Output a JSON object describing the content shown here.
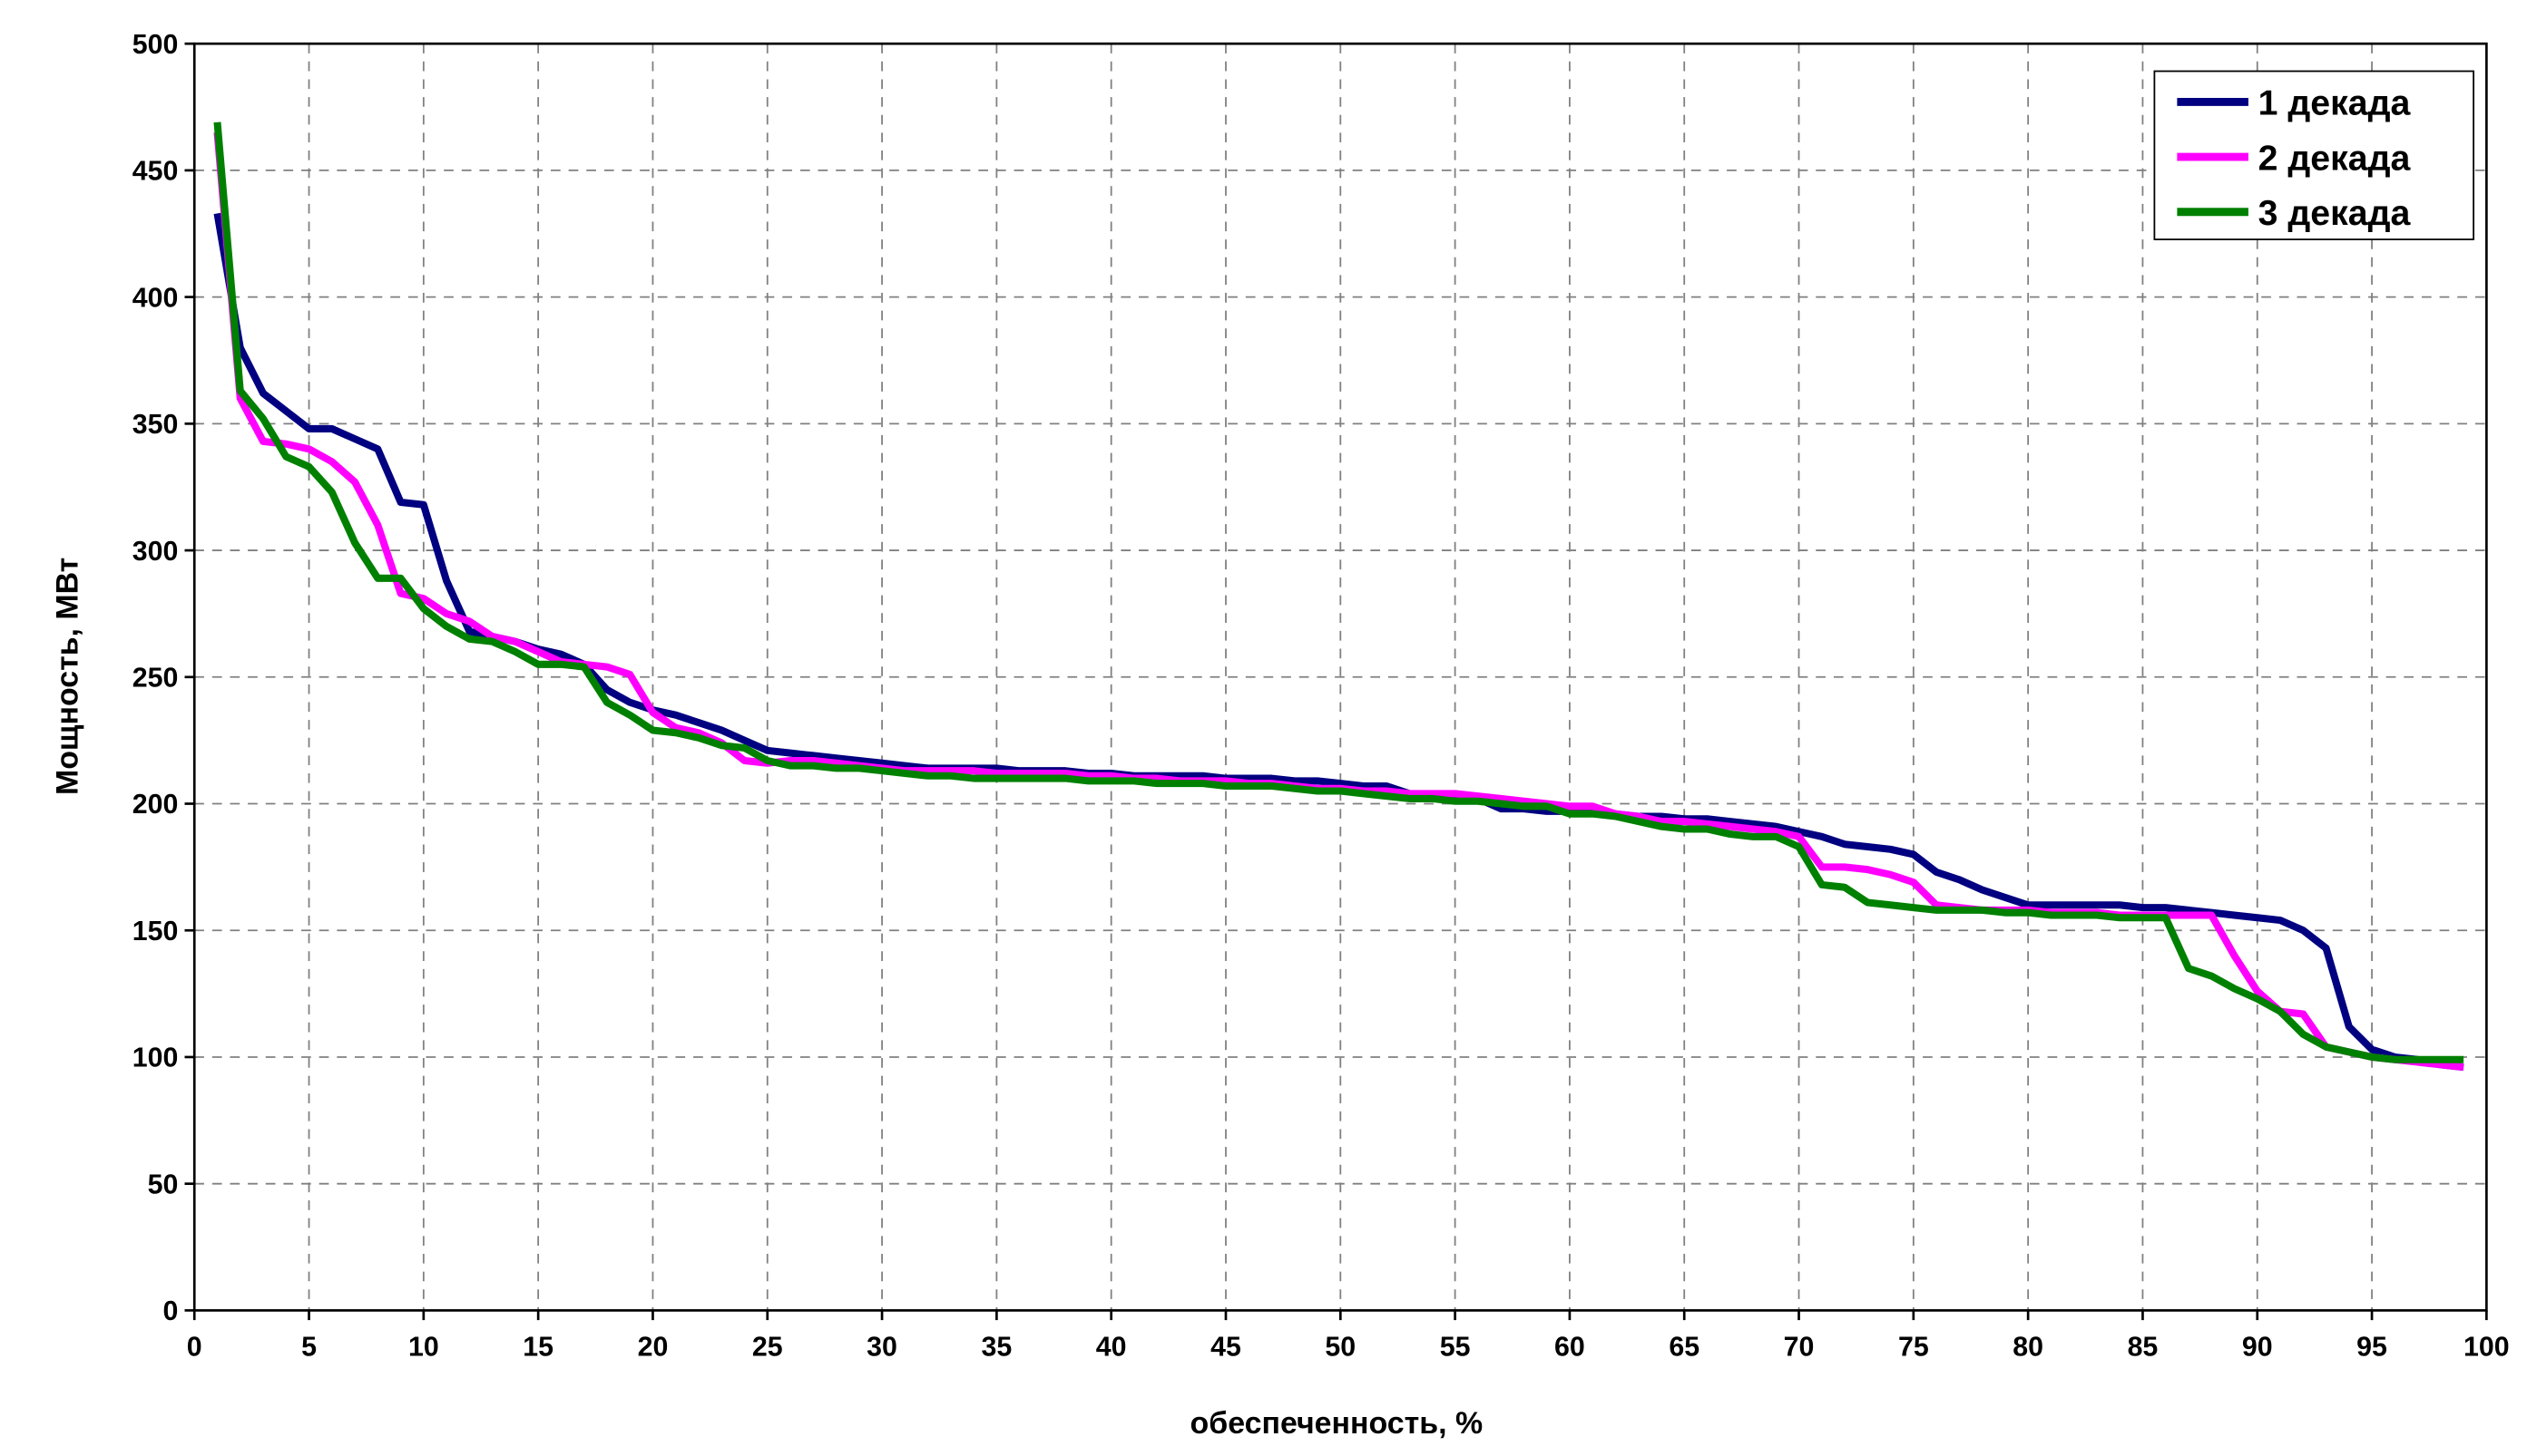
{
  "chart_data": {
    "type": "line",
    "xlabel": "обеспеченность, %",
    "ylabel": "Мощность, МВт",
    "x": [
      1,
      2,
      3,
      4,
      5,
      6,
      7,
      8,
      9,
      10,
      11,
      12,
      13,
      14,
      15,
      16,
      17,
      18,
      19,
      20,
      21,
      22,
      23,
      24,
      25,
      26,
      27,
      28,
      29,
      30,
      31,
      32,
      33,
      34,
      35,
      36,
      37,
      38,
      39,
      40,
      41,
      42,
      43,
      44,
      45,
      46,
      47,
      48,
      49,
      50,
      51,
      52,
      53,
      54,
      55,
      56,
      57,
      58,
      59,
      60,
      61,
      62,
      63,
      64,
      65,
      66,
      67,
      68,
      69,
      70,
      71,
      72,
      73,
      74,
      75,
      76,
      77,
      78,
      79,
      80,
      81,
      82,
      83,
      84,
      85,
      86,
      87,
      88,
      89,
      90,
      91,
      92,
      93,
      94,
      95,
      96,
      97,
      98,
      99
    ],
    "series": [
      {
        "name": "1 декада",
        "color": "#000080",
        "values": [
          433,
          380,
          362,
          355,
          348,
          348,
          344,
          340,
          319,
          318,
          288,
          268,
          266,
          264,
          261,
          259,
          255,
          245,
          240,
          237,
          235,
          232,
          229,
          225,
          221,
          220,
          219,
          218,
          217,
          216,
          215,
          214,
          214,
          214,
          214,
          213,
          213,
          213,
          212,
          212,
          211,
          211,
          211,
          211,
          210,
          210,
          210,
          209,
          209,
          208,
          207,
          207,
          204,
          203,
          203,
          202,
          198,
          198,
          197,
          197,
          197,
          196,
          195,
          195,
          194,
          194,
          193,
          192,
          191,
          189,
          187,
          184,
          183,
          182,
          180,
          173,
          170,
          166,
          163,
          160,
          160,
          160,
          160,
          160,
          159,
          159,
          158,
          157,
          156,
          155,
          154,
          150,
          143,
          112,
          103,
          100,
          99,
          97,
          96
        ]
      },
      {
        "name": "2 декада",
        "color": "#ff00ff",
        "values": [
          465,
          360,
          343,
          342,
          340,
          335,
          327,
          310,
          283,
          281,
          275,
          272,
          266,
          264,
          260,
          256,
          255,
          254,
          251,
          236,
          230,
          228,
          224,
          217,
          216,
          217,
          217,
          216,
          215,
          214,
          213,
          213,
          213,
          213,
          212,
          212,
          212,
          212,
          211,
          211,
          210,
          210,
          209,
          209,
          209,
          208,
          208,
          207,
          206,
          206,
          205,
          205,
          204,
          204,
          204,
          203,
          202,
          201,
          200,
          199,
          199,
          196,
          195,
          193,
          193,
          192,
          191,
          190,
          189,
          187,
          175,
          175,
          174,
          172,
          169,
          160,
          159,
          158,
          158,
          158,
          157,
          157,
          157,
          156,
          156,
          156,
          156,
          156,
          140,
          126,
          118,
          117,
          104,
          102,
          100,
          99,
          98,
          97,
          96
        ]
      },
      {
        "name": "3 декада",
        "color": "#008000",
        "values": [
          469,
          363,
          352,
          337,
          333,
          323,
          303,
          289,
          289,
          277,
          270,
          265,
          264,
          260,
          255,
          255,
          254,
          240,
          235,
          229,
          228,
          226,
          223,
          222,
          217,
          215,
          215,
          214,
          214,
          213,
          212,
          211,
          211,
          210,
          210,
          210,
          210,
          210,
          209,
          209,
          209,
          208,
          208,
          208,
          207,
          207,
          207,
          206,
          205,
          205,
          204,
          203,
          202,
          202,
          201,
          201,
          200,
          199,
          199,
          196,
          196,
          195,
          193,
          191,
          190,
          190,
          188,
          187,
          187,
          183,
          168,
          167,
          161,
          160,
          159,
          158,
          158,
          158,
          157,
          157,
          156,
          156,
          156,
          155,
          155,
          155,
          135,
          132,
          127,
          123,
          118,
          109,
          104,
          102,
          100,
          99,
          99,
          99,
          99
        ]
      }
    ],
    "xlim": [
      0,
      100
    ],
    "xticks": [
      0,
      5,
      10,
      15,
      20,
      25,
      30,
      35,
      40,
      45,
      50,
      55,
      60,
      65,
      70,
      75,
      80,
      85,
      90,
      95,
      100
    ],
    "ylim": [
      0,
      500
    ],
    "yticks": [
      0,
      50,
      100,
      150,
      200,
      250,
      300,
      350,
      400,
      450,
      500
    ],
    "grid": true,
    "legend": "top-right"
  }
}
